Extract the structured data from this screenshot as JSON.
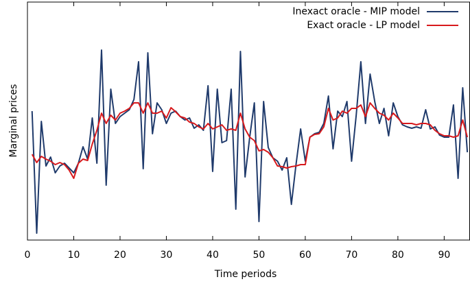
{
  "chart_data": {
    "type": "line",
    "xlabel": "Time periods",
    "ylabel": "Marginal prices",
    "x": [
      1,
      2,
      3,
      4,
      5,
      6,
      7,
      8,
      9,
      10,
      11,
      12,
      13,
      14,
      15,
      16,
      17,
      18,
      19,
      20,
      21,
      22,
      23,
      24,
      25,
      26,
      27,
      28,
      29,
      30,
      31,
      32,
      33,
      34,
      35,
      36,
      37,
      38,
      39,
      40,
      41,
      42,
      43,
      44,
      45,
      46,
      47,
      48,
      49,
      50,
      51,
      52,
      53,
      54,
      55,
      56,
      57,
      58,
      59,
      60,
      61,
      62,
      63,
      64,
      65,
      66,
      67,
      68,
      69,
      70,
      71,
      72,
      73,
      74,
      75,
      76,
      77,
      78,
      79,
      80,
      81,
      82,
      83,
      84,
      85,
      86,
      87,
      88,
      89,
      90,
      91,
      92,
      93,
      94,
      95
    ],
    "series": [
      {
        "name": "Inexact oracle - MIP model",
        "color": "#1f3a6b",
        "values": [
          188,
          10,
          173,
          108,
          121,
          98,
          108,
          112,
          105,
          98,
          112,
          136,
          118,
          178,
          112,
          277,
          80,
          220,
          170,
          180,
          185,
          190,
          205,
          260,
          104,
          273,
          155,
          200,
          190,
          170,
          185,
          188,
          180,
          175,
          178,
          163,
          168,
          160,
          225,
          100,
          220,
          142,
          145,
          220,
          45,
          275,
          92,
          150,
          200,
          27,
          202,
          135,
          120,
          115,
          102,
          120,
          52,
          110,
          162,
          115,
          150,
          155,
          157,
          170,
          210,
          133,
          188,
          180,
          202,
          115,
          182,
          260,
          170,
          242,
          202,
          170,
          192,
          152,
          200,
          180,
          168,
          165,
          163,
          165,
          163,
          190,
          162,
          165,
          153,
          150,
          150,
          197,
          90,
          222,
          128
        ]
      },
      {
        "name": "Exact oracle - LP model",
        "color": "#d7191c",
        "values": [
          125,
          113,
          122,
          118,
          115,
          110,
          113,
          110,
          102,
          90,
          112,
          118,
          116,
          140,
          160,
          185,
          170,
          182,
          175,
          185,
          188,
          192,
          200,
          200,
          185,
          200,
          185,
          185,
          188,
          178,
          193,
          187,
          180,
          178,
          172,
          170,
          165,
          162,
          170,
          162,
          165,
          168,
          160,
          162,
          160,
          185,
          162,
          150,
          145,
          130,
          132,
          128,
          120,
          108,
          107,
          105,
          107,
          108,
          110,
          110,
          150,
          154,
          155,
          165,
          192,
          175,
          178,
          188,
          185,
          192,
          192,
          197,
          180,
          200,
          192,
          185,
          182,
          175,
          185,
          178,
          170,
          170,
          170,
          168,
          170,
          170,
          168,
          160,
          155,
          152,
          152,
          150,
          152,
          175,
          150
        ]
      }
    ],
    "xlim": [
      0,
      95.5
    ],
    "xticks": [
      0,
      10,
      20,
      30,
      40,
      50,
      60,
      70,
      80,
      90
    ],
    "ylim": [
      0,
      347
    ],
    "legend": "upper right"
  }
}
